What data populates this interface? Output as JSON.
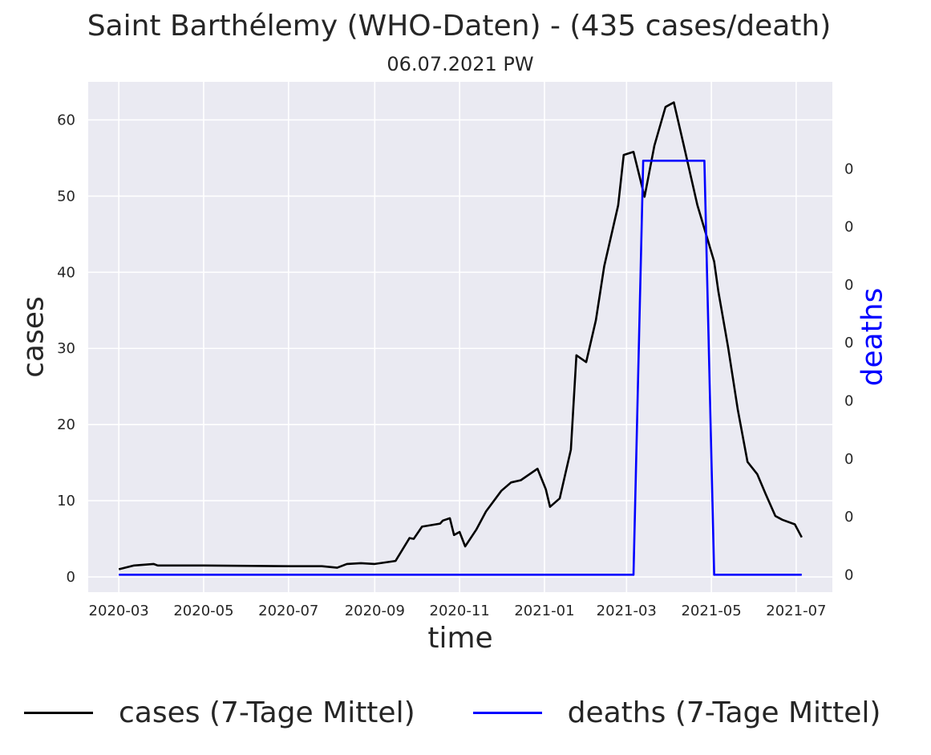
{
  "chart_data": {
    "type": "line",
    "title": "Saint Barthélemy (WHO-Daten) - (435 cases/death)",
    "subtitle": "06.07.2021 PW",
    "xlabel": "time",
    "ylabel": "cases",
    "ylabel_right": "deaths",
    "x_ticks": [
      "2020-03",
      "2020-05",
      "2020-07",
      "2020-09",
      "2020-11",
      "2021-01",
      "2021-03",
      "2021-05",
      "2021-07"
    ],
    "y_ticks": [
      "0",
      "10",
      "20",
      "30",
      "40",
      "50",
      "60"
    ],
    "y2_ticks": [
      "0",
      "0",
      "0",
      "0",
      "0",
      "0",
      "0",
      "0"
    ],
    "xlim": [
      "2020-02-08",
      "2021-07-27"
    ],
    "ylim": [
      -2,
      65
    ],
    "y2lim": [
      -0.003,
      0.085
    ],
    "grid": true,
    "background": "#eaeaf2",
    "legend_position": "bottom",
    "series": [
      {
        "name": "cases (7-Tage Mittel)",
        "axis": "left",
        "color": "#000000",
        "points": [
          [
            "2020-03-01",
            1.0
          ],
          [
            "2020-03-12",
            1.5
          ],
          [
            "2020-03-26",
            1.7
          ],
          [
            "2020-03-29",
            1.5
          ],
          [
            "2020-05-01",
            1.5
          ],
          [
            "2020-07-01",
            1.4
          ],
          [
            "2020-07-25",
            1.4
          ],
          [
            "2020-08-05",
            1.2
          ],
          [
            "2020-08-12",
            1.7
          ],
          [
            "2020-08-22",
            1.8
          ],
          [
            "2020-09-01",
            1.7
          ],
          [
            "2020-09-16",
            2.1
          ],
          [
            "2020-09-26",
            5.1
          ],
          [
            "2020-09-29",
            5.0
          ],
          [
            "2020-10-05",
            6.6
          ],
          [
            "2020-10-18",
            7.0
          ],
          [
            "2020-10-20",
            7.4
          ],
          [
            "2020-10-25",
            7.7
          ],
          [
            "2020-10-28",
            5.5
          ],
          [
            "2020-11-01",
            5.9
          ],
          [
            "2020-11-05",
            4.0
          ],
          [
            "2020-11-13",
            6.2
          ],
          [
            "2020-11-20",
            8.6
          ],
          [
            "2020-12-01",
            11.3
          ],
          [
            "2020-12-08",
            12.4
          ],
          [
            "2020-12-15",
            12.7
          ],
          [
            "2020-12-27",
            14.2
          ],
          [
            "2021-01-02",
            11.5
          ],
          [
            "2021-01-05",
            9.2
          ],
          [
            "2021-01-12",
            10.3
          ],
          [
            "2021-01-20",
            16.7
          ],
          [
            "2021-01-24",
            29.1
          ],
          [
            "2021-01-31",
            28.2
          ],
          [
            "2021-02-07",
            33.7
          ],
          [
            "2021-02-13",
            40.8
          ],
          [
            "2021-02-23",
            48.8
          ],
          [
            "2021-02-27",
            55.4
          ],
          [
            "2021-03-06",
            55.8
          ],
          [
            "2021-03-14",
            49.9
          ],
          [
            "2021-03-21",
            56.6
          ],
          [
            "2021-03-29",
            61.7
          ],
          [
            "2021-04-04",
            62.3
          ],
          [
            "2021-04-11",
            56.8
          ],
          [
            "2021-04-21",
            48.8
          ],
          [
            "2021-05-03",
            41.4
          ],
          [
            "2021-05-06",
            37.5
          ],
          [
            "2021-05-13",
            30.2
          ],
          [
            "2021-05-20",
            22.0
          ],
          [
            "2021-05-27",
            15.1
          ],
          [
            "2021-06-03",
            13.5
          ],
          [
            "2021-06-09",
            10.9
          ],
          [
            "2021-06-16",
            8.0
          ],
          [
            "2021-06-21",
            7.5
          ],
          [
            "2021-06-30",
            6.9
          ],
          [
            "2021-07-05",
            5.2
          ]
        ]
      },
      {
        "name": "deaths (7-Tage Mittel)",
        "axis": "right",
        "color": "#0000ff",
        "points": [
          [
            "2020-03-01",
            0.0
          ],
          [
            "2021-03-06",
            0.0
          ],
          [
            "2021-03-13",
            0.0714
          ],
          [
            "2021-04-26",
            0.0714
          ],
          [
            "2021-05-03",
            0.0
          ],
          [
            "2021-07-05",
            0.0
          ]
        ]
      }
    ]
  },
  "legend": {
    "cases_label": "cases (7-Tage Mittel)",
    "deaths_label": "deaths (7-Tage Mittel)",
    "cases_color": "#000000",
    "deaths_color": "#0000ff"
  }
}
